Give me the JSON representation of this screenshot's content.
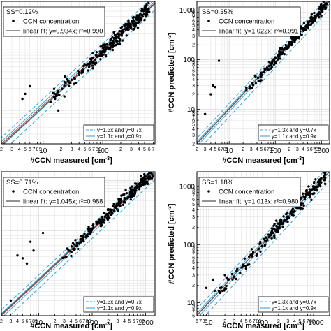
{
  "chart_data": [
    {
      "type": "scatter",
      "panel": "top-left",
      "title": "SS=0.12%",
      "xlabel": "#CCN measured [cm-3]",
      "ylabel": "",
      "xscale": "log",
      "yscale": "log",
      "xlim": [
        2,
        750
      ],
      "ylim": [
        2,
        750
      ],
      "x_tick_labels": [
        [
          "2",
          2
        ],
        [
          "3",
          3
        ],
        [
          "4",
          4
        ],
        [
          "5",
          5
        ],
        [
          "6",
          6
        ],
        [
          "7",
          7
        ],
        [
          "8",
          8
        ],
        [
          "9",
          9
        ],
        [
          "10",
          10
        ],
        [
          "2",
          20
        ],
        [
          "3",
          30
        ],
        [
          "4",
          40
        ],
        [
          "5",
          50
        ],
        [
          "6",
          60
        ],
        [
          "7",
          70
        ],
        [
          "8",
          80
        ],
        [
          "9",
          90
        ],
        [
          "100",
          100
        ],
        [
          "2",
          200
        ],
        [
          "3",
          300
        ],
        [
          "4",
          400
        ],
        [
          "5",
          500
        ],
        [
          "6",
          600
        ],
        [
          "7",
          700
        ]
      ],
      "y_tick_labels": [],
      "legend_top": [
        "CCN concentration",
        "linear fit: y=0.934x; r²=0.990"
      ],
      "legend_bottom": [
        "y=1.3x and y=0.7x",
        "y=1.1x and y=0.9x"
      ],
      "fit_slope": 0.934,
      "data_range": [
        10,
        600
      ],
      "spread": 0.14,
      "n_points": 260,
      "outliers": [
        [
          5,
          16
        ],
        [
          4.5,
          13
        ],
        [
          18,
          8
        ],
        [
          6,
          22
        ]
      ],
      "seed": 11,
      "grid": true
    },
    {
      "type": "scatter",
      "panel": "top-right",
      "title": "SS=0.35%",
      "xlabel": "#CCN measured [cm-3]",
      "ylabel": "#CCN predicted [cm-3]",
      "xscale": "log",
      "yscale": "log",
      "xlim": [
        2,
        1500
      ],
      "ylim": [
        2,
        1500
      ],
      "x_tick_labels": [
        [
          "2",
          2
        ],
        [
          "3",
          3
        ],
        [
          "4",
          4
        ],
        [
          "5",
          5
        ],
        [
          "6",
          6
        ],
        [
          "7",
          7
        ],
        [
          "8",
          8
        ],
        [
          "9",
          9
        ],
        [
          "10",
          10
        ],
        [
          "2",
          20
        ],
        [
          "3",
          30
        ],
        [
          "4",
          40
        ],
        [
          "5",
          50
        ],
        [
          "6",
          60
        ],
        [
          "7",
          70
        ],
        [
          "8",
          80
        ],
        [
          "9",
          90
        ],
        [
          "100",
          100
        ],
        [
          "2",
          200
        ],
        [
          "3",
          300
        ],
        [
          "4",
          400
        ],
        [
          "5",
          500
        ],
        [
          "6",
          600
        ],
        [
          "7",
          700
        ],
        [
          "8",
          800
        ],
        [
          "9",
          900
        ],
        [
          "1000",
          1000
        ]
      ],
      "y_tick_labels": [
        [
          "2",
          2
        ],
        [
          "3",
          3
        ],
        [
          "4",
          4
        ],
        [
          "5",
          5
        ],
        [
          "6",
          6
        ],
        [
          "7",
          7
        ],
        [
          "8",
          8
        ],
        [
          "9",
          9
        ],
        [
          "10",
          10
        ],
        [
          "2",
          20
        ],
        [
          "3",
          30
        ],
        [
          "4",
          40
        ],
        [
          "5",
          50
        ],
        [
          "6",
          60
        ],
        [
          "7",
          70
        ],
        [
          "8",
          80
        ],
        [
          "9",
          90
        ],
        [
          "100",
          100
        ],
        [
          "2",
          200
        ],
        [
          "3",
          300
        ],
        [
          "4",
          400
        ],
        [
          "5",
          500
        ],
        [
          "6",
          600
        ],
        [
          "7",
          700
        ],
        [
          "8",
          800
        ],
        [
          "9",
          900
        ],
        [
          "1000",
          1000
        ]
      ],
      "legend_top": [
        "CCN concentration",
        "linear fit: y=1.022x; r²=0.991"
      ],
      "legend_bottom": [
        "y=1.3x and y=0.7x",
        "y=1.1x and y=0.9x"
      ],
      "fit_slope": 1.022,
      "data_range": [
        20,
        1300
      ],
      "spread": 0.12,
      "n_points": 200,
      "outliers": [
        [
          4,
          20
        ],
        [
          5,
          28
        ],
        [
          6,
          95
        ],
        [
          4.5,
          30
        ],
        [
          3,
          8
        ]
      ],
      "seed": 23,
      "grid": true
    },
    {
      "type": "scatter",
      "panel": "bottom-left",
      "title": "SS=0.71%",
      "xlabel": "#CCN measured [cm-3]",
      "ylabel": "",
      "xscale": "log",
      "yscale": "log",
      "xlim": [
        2,
        1500
      ],
      "ylim": [
        2,
        1500
      ],
      "x_tick_labels": [
        [
          "2",
          2
        ],
        [
          "3",
          3
        ],
        [
          "4",
          4
        ],
        [
          "5",
          5
        ],
        [
          "6",
          6
        ],
        [
          "7",
          7
        ],
        [
          "8",
          8
        ],
        [
          "9",
          9
        ],
        [
          "10",
          10
        ],
        [
          "2",
          20
        ],
        [
          "3",
          30
        ],
        [
          "4",
          40
        ],
        [
          "5",
          50
        ],
        [
          "6",
          60
        ],
        [
          "7",
          70
        ],
        [
          "8",
          80
        ],
        [
          "9",
          90
        ],
        [
          "100",
          100
        ],
        [
          "2",
          200
        ],
        [
          "3",
          300
        ],
        [
          "4",
          400
        ],
        [
          "5",
          500
        ],
        [
          "6",
          600
        ],
        [
          "7",
          700
        ],
        [
          "8",
          800
        ],
        [
          "9",
          900
        ],
        [
          "1000",
          1000
        ]
      ],
      "y_tick_labels": [],
      "legend_top": [
        "CCN concentration",
        "linear fit: y=1.045x; r²=0.988"
      ],
      "legend_bottom": [
        "y=1.3x and y=0.7x",
        "y=1.1x and y=0.9x"
      ],
      "fit_slope": 1.045,
      "data_range": [
        25,
        1400
      ],
      "spread": 0.13,
      "n_points": 230,
      "outliers": [
        [
          4,
          32
        ],
        [
          5,
          28
        ],
        [
          6,
          22
        ],
        [
          8,
          40
        ],
        [
          7,
          60
        ],
        [
          12,
          90
        ],
        [
          3,
          4
        ]
      ],
      "seed": 37,
      "grid": true
    },
    {
      "type": "scatter",
      "panel": "bottom-right",
      "title": "SS=1.18%",
      "xlabel": "#CCN measured [cm-3]",
      "ylabel": "#CCN predicted [cm-3]",
      "xscale": "log",
      "yscale": "log",
      "xlim": [
        6,
        1800
      ],
      "ylim": [
        6,
        1800
      ],
      "x_tick_labels": [
        [
          "6",
          6
        ],
        [
          "7",
          7
        ],
        [
          "8",
          8
        ],
        [
          "9",
          9
        ],
        [
          "10",
          10
        ],
        [
          "2",
          20
        ],
        [
          "3",
          30
        ],
        [
          "4",
          40
        ],
        [
          "5",
          50
        ],
        [
          "6",
          60
        ],
        [
          "7",
          70
        ],
        [
          "8",
          80
        ],
        [
          "9",
          90
        ],
        [
          "100",
          100
        ],
        [
          "2",
          200
        ],
        [
          "3",
          300
        ],
        [
          "4",
          400
        ],
        [
          "5",
          500
        ],
        [
          "6",
          600
        ],
        [
          "7",
          700
        ],
        [
          "8",
          800
        ],
        [
          "9",
          900
        ],
        [
          "1000",
          1000
        ]
      ],
      "y_tick_labels": [
        [
          "6",
          6
        ],
        [
          "7",
          7
        ],
        [
          "8",
          8
        ],
        [
          "9",
          9
        ],
        [
          "10",
          10
        ],
        [
          "2",
          20
        ],
        [
          "3",
          30
        ],
        [
          "4",
          40
        ],
        [
          "5",
          50
        ],
        [
          "6",
          60
        ],
        [
          "7",
          70
        ],
        [
          "8",
          80
        ],
        [
          "9",
          90
        ],
        [
          "100",
          100
        ],
        [
          "2",
          200
        ],
        [
          "3",
          300
        ],
        [
          "4",
          400
        ],
        [
          "5",
          500
        ],
        [
          "6",
          600
        ],
        [
          "7",
          700
        ],
        [
          "8",
          800
        ],
        [
          "9",
          900
        ],
        [
          "1000",
          1000
        ]
      ],
      "legend_top": [
        "CCN concentration",
        "linear fit: y=1.013x; r²=0.980"
      ],
      "legend_bottom": [
        "y=1.3x and y=0.7x",
        "y=1.1x and y=0.9x"
      ],
      "fit_slope": 1.013,
      "data_range": [
        10,
        1500
      ],
      "spread": 0.13,
      "n_points": 220,
      "outliers": [
        [
          9,
          18
        ],
        [
          12,
          25
        ],
        [
          20,
          30
        ]
      ],
      "seed": 51,
      "grid": true
    }
  ],
  "colors": {
    "points": "#000000",
    "fit_line": "#555555",
    "ref_outer": "#3fa7d6",
    "ref_inner": "#3fa7d6",
    "identity": "#c0392b",
    "grid": "#dddddd"
  },
  "ylabel_text": "#CCN predicted [cm",
  "xlabel_text": "#CCN measured [cm",
  "unit_exponent": "-3"
}
